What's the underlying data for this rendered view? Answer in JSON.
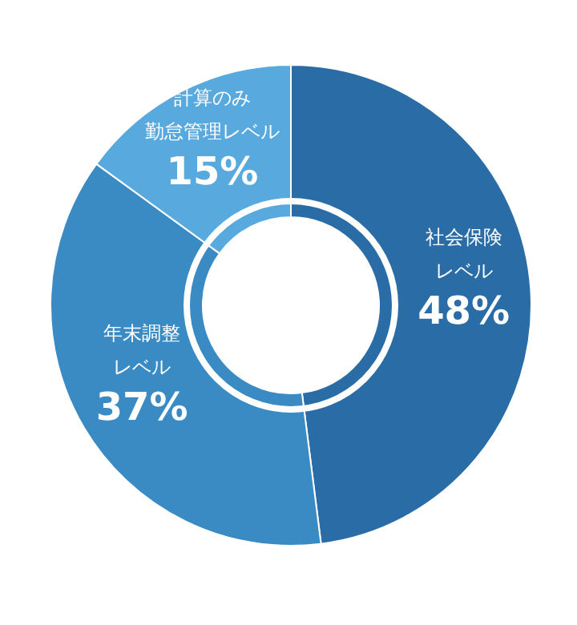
{
  "chart_data": {
    "type": "donut",
    "categories": [
      "社会保険レベル",
      "年末調整レベル",
      "計算のみ勤怠管理レベル"
    ],
    "values": [
      48,
      37,
      15
    ],
    "colors": [
      "#2a6da6",
      "#3a8ac4",
      "#58a9dd"
    ],
    "value_labels": [
      "48%",
      "37%",
      "15%"
    ]
  }
}
